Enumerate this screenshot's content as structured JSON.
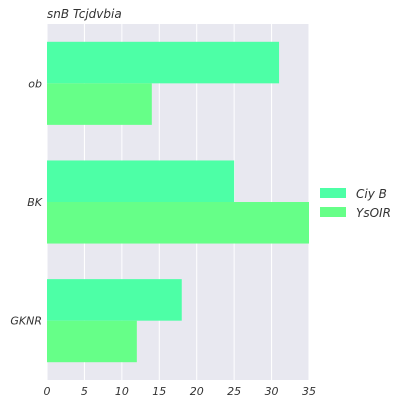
{
  "chart_data": {
    "type": "bar",
    "orientation": "horizontal",
    "title": "snB Tcjdvbia",
    "xlabel": "",
    "ylabel": "",
    "categories": [
      "ob",
      "BK",
      "GKNR"
    ],
    "series": [
      {
        "name": "Ciy B",
        "values": [
          31,
          25,
          18
        ],
        "color": "#4dffa6"
      },
      {
        "name": "YsOIR",
        "values": [
          14,
          35,
          12
        ],
        "color": "#66ff88"
      }
    ],
    "xlim": [
      0,
      35
    ],
    "xticks": [
      0,
      5,
      10,
      15,
      20,
      25,
      30,
      35
    ],
    "grid": true,
    "legend_position": "right",
    "background": "#e8e8f0"
  }
}
